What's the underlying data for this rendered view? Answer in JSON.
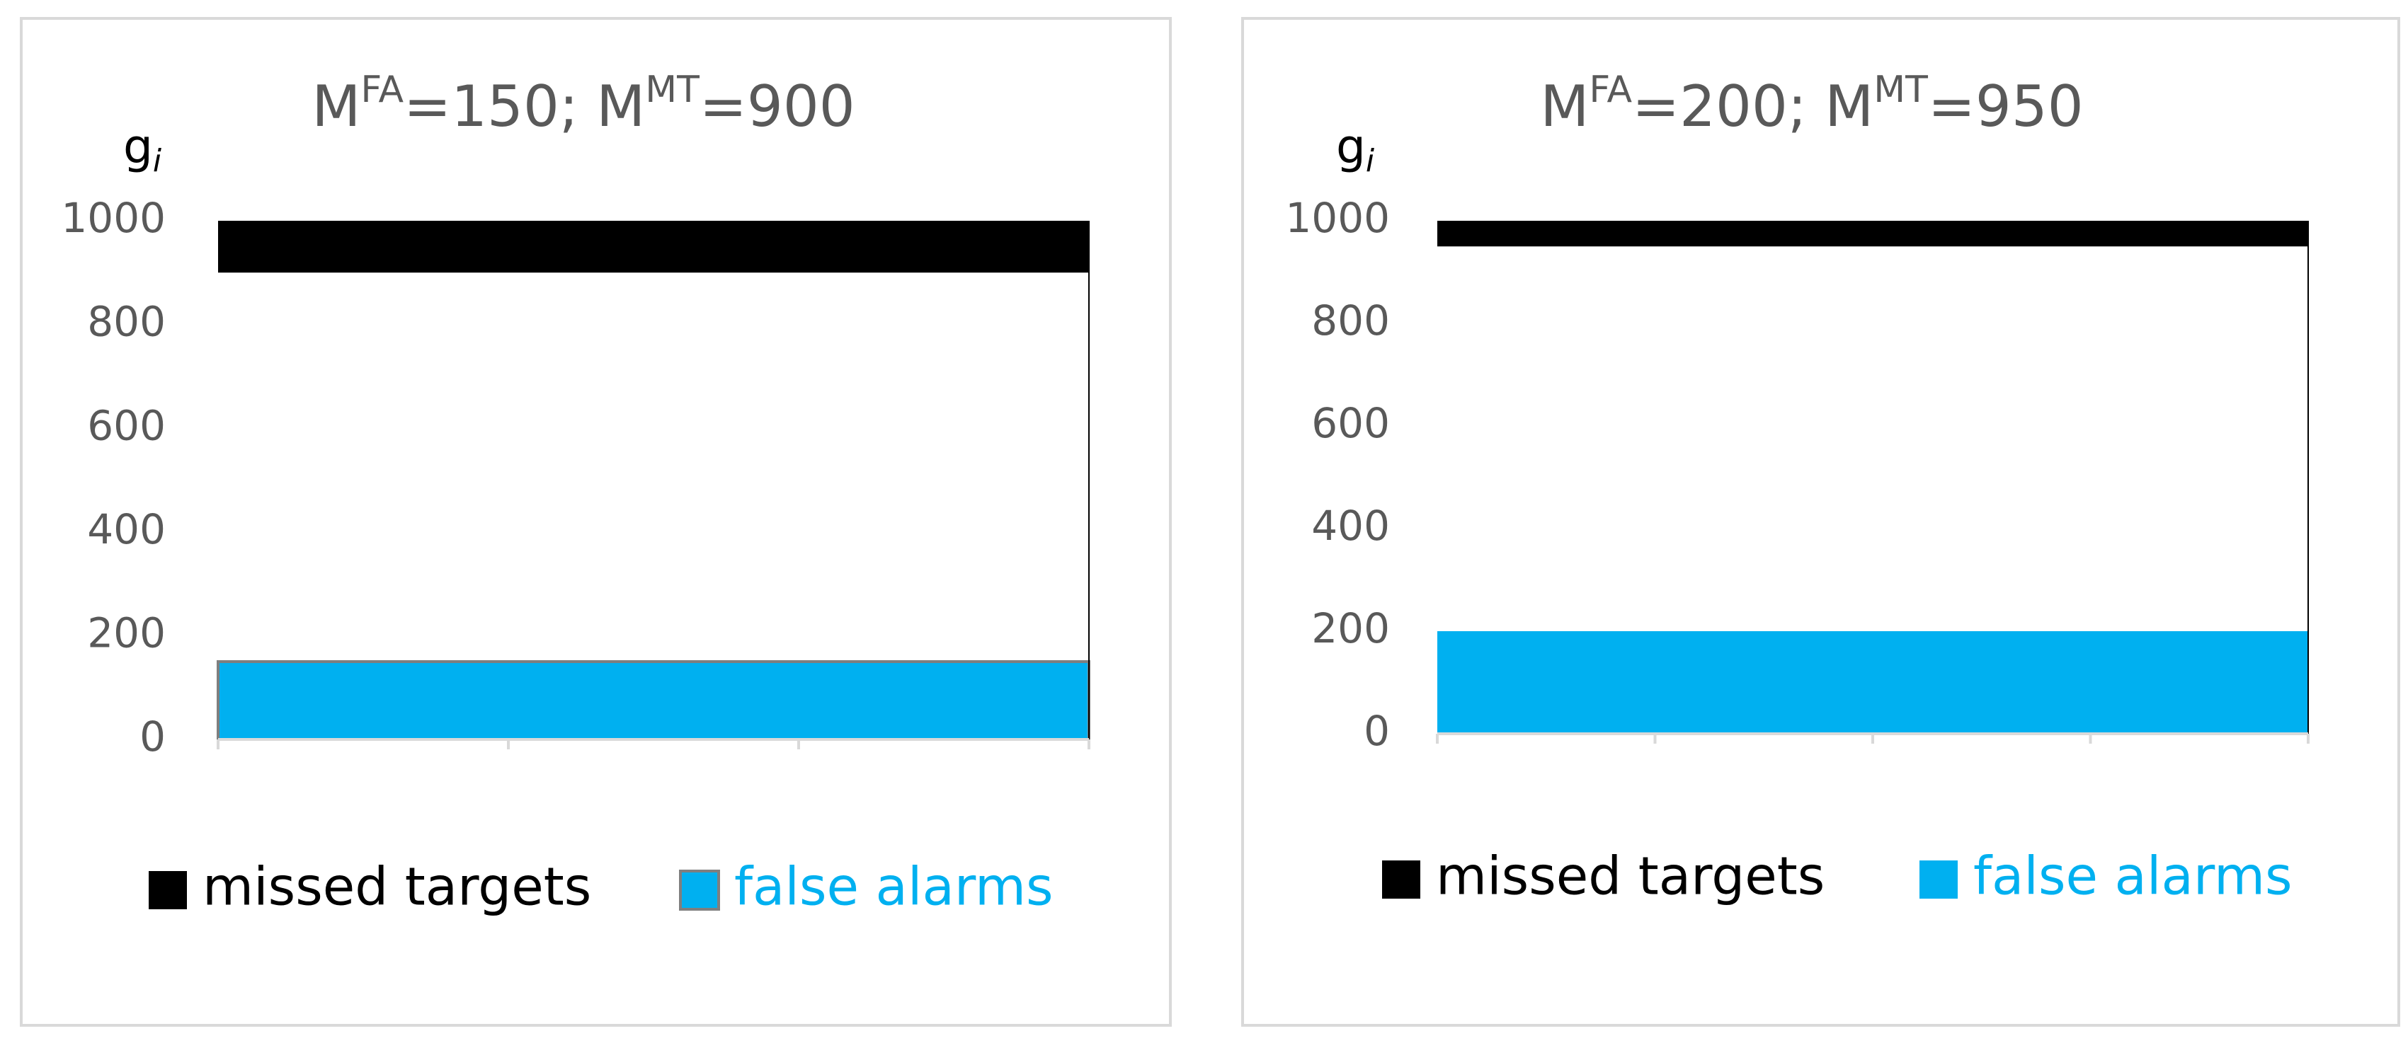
{
  "chart_data": [
    {
      "type": "band",
      "title": [
        "M",
        "FA",
        "=150; M",
        "MT",
        "=900"
      ],
      "ylabel": [
        "g",
        "i"
      ],
      "x": [
        0,
        1,
        2,
        3
      ],
      "xlim": [
        0,
        3
      ],
      "xticks": [
        0,
        1,
        2,
        3
      ],
      "ylim": [
        0,
        1000
      ],
      "yticks": [
        0,
        200,
        400,
        600,
        800,
        1000
      ],
      "series": [
        {
          "name": "missed targets",
          "color": "#000000",
          "fill": "above",
          "values": [
            900,
            900,
            900,
            900
          ]
        },
        {
          "name": "false alarms",
          "color": "#00b0f0",
          "edge": "#7f7f7f",
          "fill": "below",
          "values": [
            150,
            150,
            150,
            150
          ]
        }
      ]
    },
    {
      "type": "band",
      "title": [
        "M",
        "FA",
        "=200; M",
        "MT",
        "=950"
      ],
      "ylabel": [
        "g",
        "i"
      ],
      "x": [
        0,
        1,
        2,
        3,
        4
      ],
      "xlim": [
        0,
        4
      ],
      "xticks": [
        0,
        1,
        2,
        3,
        4
      ],
      "ylim": [
        0,
        1000
      ],
      "yticks": [
        0,
        200,
        400,
        600,
        800,
        1000
      ],
      "series": [
        {
          "name": "missed targets",
          "color": "#000000",
          "fill": "above",
          "values": [
            950,
            950,
            950,
            950,
            950
          ]
        },
        {
          "name": "false alarms",
          "color": "#00b0f0",
          "fill": "below",
          "values": [
            200,
            200,
            200,
            200,
            200
          ]
        }
      ]
    }
  ]
}
